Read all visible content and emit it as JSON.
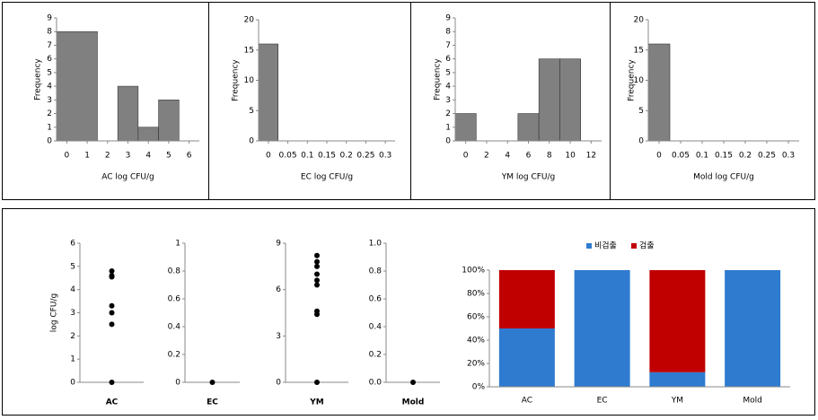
{
  "chart_data": [
    {
      "type": "histogram",
      "xlabel": "AC log CFU/g",
      "ylabel": "Frequency",
      "color": "#808080",
      "bins": [
        -0.5,
        1.5,
        2.5,
        3.5,
        4.5,
        5.5
      ],
      "counts": [
        8,
        0,
        4,
        1,
        3
      ],
      "xlim": [
        -0.5,
        6.5
      ],
      "ylim": [
        0,
        9
      ],
      "xticks": [
        0,
        1,
        2,
        3,
        4,
        5,
        6
      ],
      "yticks": [
        0,
        1,
        2,
        3,
        4,
        5,
        6,
        7,
        8,
        9
      ]
    },
    {
      "type": "histogram",
      "xlabel": "EC log CFU/g",
      "ylabel": "Frequency",
      "color": "#808080",
      "bins": [
        -0.025,
        0.025
      ],
      "counts": [
        16
      ],
      "xlim": [
        -0.025,
        0.325
      ],
      "ylim": [
        0,
        20
      ],
      "xticks": [
        0,
        0.05,
        0.1,
        0.15,
        0.2,
        0.25,
        0.3
      ],
      "yticks": [
        0,
        5,
        10,
        15,
        20
      ]
    },
    {
      "type": "histogram",
      "xlabel": "YM log CFU/g",
      "ylabel": "Frequency",
      "color": "#808080",
      "bins": [
        -1,
        1,
        3,
        5,
        7,
        9,
        11
      ],
      "counts": [
        2,
        0,
        0,
        2,
        6,
        6
      ],
      "xlim": [
        -1,
        13
      ],
      "ylim": [
        0,
        9
      ],
      "xticks": [
        0,
        2,
        4,
        6,
        8,
        10,
        12
      ],
      "yticks": [
        0,
        1,
        2,
        3,
        4,
        5,
        6,
        7,
        8,
        9
      ]
    },
    {
      "type": "histogram",
      "xlabel": "Mold log CFU/g",
      "ylabel": "Frequency",
      "color": "#808080",
      "bins": [
        -0.025,
        0.025
      ],
      "counts": [
        16
      ],
      "xlim": [
        -0.025,
        0.325
      ],
      "ylim": [
        0,
        20
      ],
      "xticks": [
        0,
        0.05,
        0.1,
        0.15,
        0.2,
        0.25,
        0.3
      ],
      "yticks": [
        0,
        5,
        10,
        15,
        20
      ]
    },
    {
      "type": "strip",
      "category": "AC",
      "ylabel": "log CFU/g",
      "color": "#000000",
      "values": [
        0,
        2.5,
        3.0,
        3.3,
        4.55,
        4.6,
        4.8
      ],
      "ylim": [
        0,
        6
      ],
      "yticks": [
        0,
        1,
        2,
        3,
        4,
        5,
        6
      ]
    },
    {
      "type": "strip",
      "category": "EC",
      "color": "#000000",
      "values": [
        0
      ],
      "ylim": [
        0,
        1
      ],
      "yticks": [
        0,
        0.2,
        0.4,
        0.6,
        0.8,
        1
      ]
    },
    {
      "type": "strip",
      "category": "YM",
      "color": "#000000",
      "values": [
        0,
        4.4,
        4.6,
        6.3,
        6.6,
        7.0,
        7.5,
        7.8,
        8.2
      ],
      "ylim": [
        0,
        9
      ],
      "yticks": [
        0,
        3,
        6,
        9
      ]
    },
    {
      "type": "strip",
      "category": "Mold",
      "color": "#000000",
      "values": [
        0
      ],
      "ylim": [
        0,
        1
      ],
      "yticks": [
        {
          "value": 0,
          "label": "0.0"
        },
        0.2,
        0.4,
        0.6,
        0.8,
        {
          "value": 1,
          "label": "1.0"
        }
      ]
    },
    {
      "type": "stacked_bar",
      "categories": [
        "AC",
        "EC",
        "YM",
        "Mold"
      ],
      "series": [
        {
          "name": "비검출",
          "color": "#2e7bd0",
          "values": [
            50,
            100,
            12.5,
            100
          ]
        },
        {
          "name": "검출",
          "color": "#c00000",
          "values": [
            50,
            0,
            87.5,
            0
          ]
        }
      ],
      "ylim": [
        0,
        100
      ],
      "yticks": [
        {
          "value": 0,
          "label": "0%"
        },
        {
          "value": 20,
          "label": "20%"
        },
        {
          "value": 40,
          "label": "40%"
        },
        {
          "value": 60,
          "label": "60%"
        },
        {
          "value": 80,
          "label": "80%"
        },
        {
          "value": 100,
          "label": "100%"
        }
      ]
    }
  ]
}
